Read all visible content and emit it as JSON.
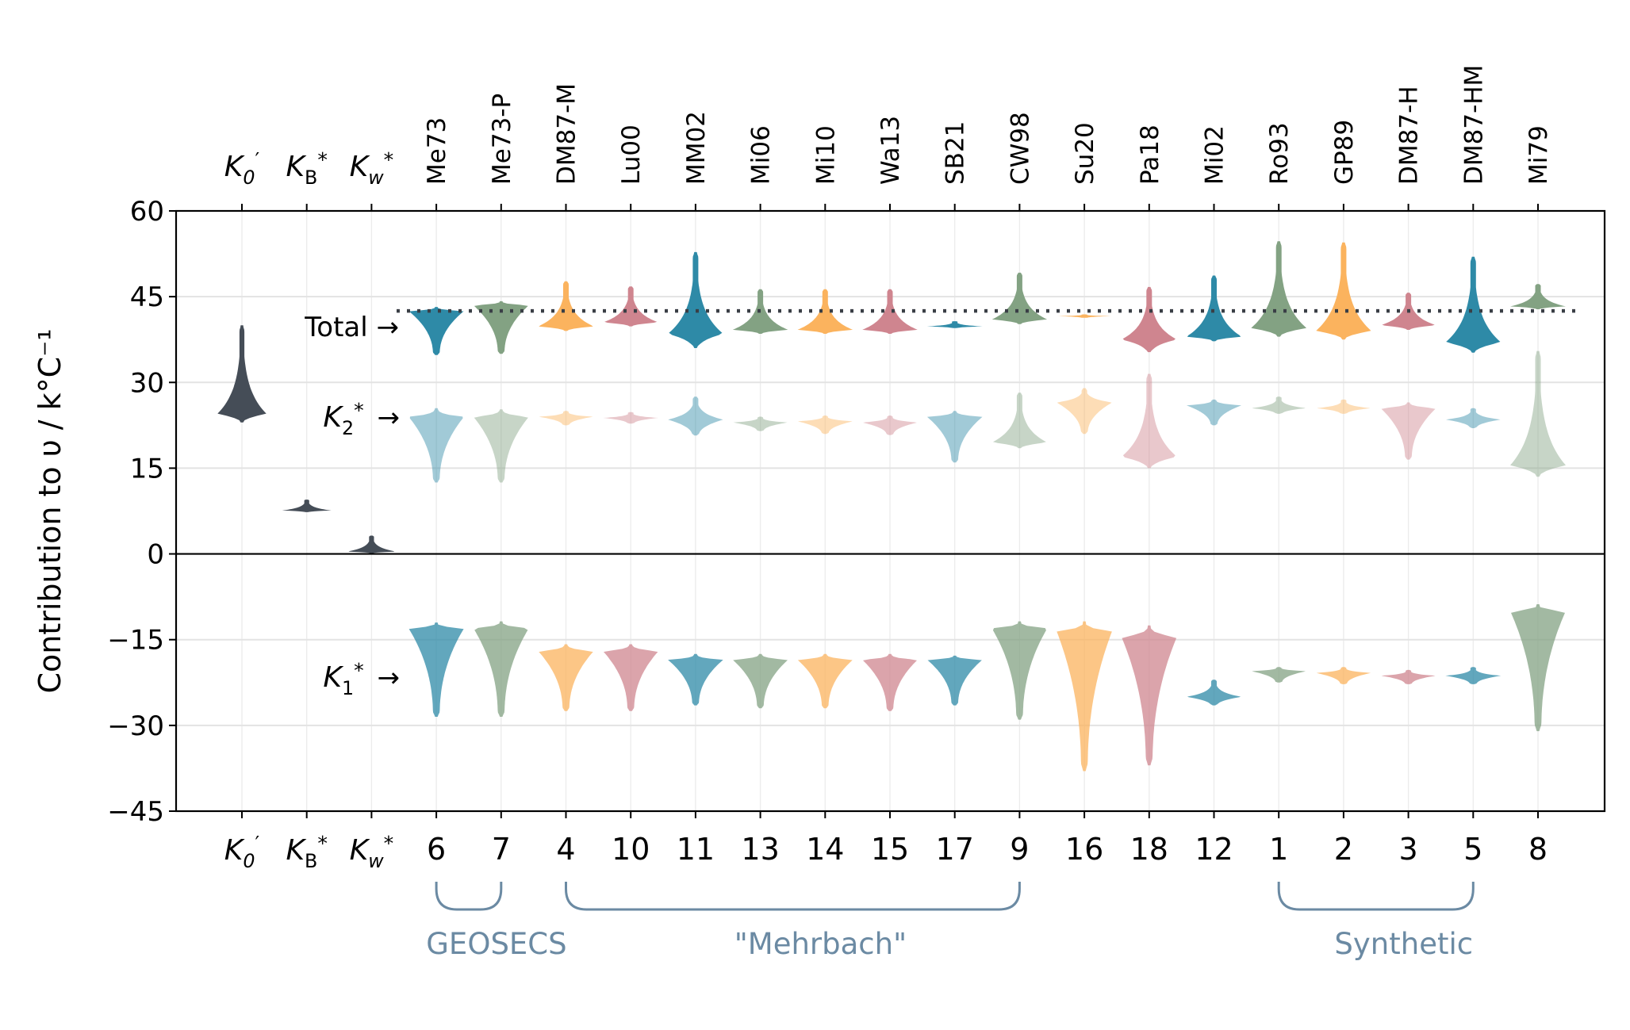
{
  "chart_data": {
    "type": "violin",
    "ylabel": "Contribution to υ / k°C⁻¹",
    "ylim": [
      -45,
      60
    ],
    "yticks": [
      60,
      45,
      30,
      15,
      0,
      -15,
      -30,
      -45
    ],
    "ytick_labels": [
      "60",
      "45",
      "30",
      "15",
      "0",
      "−15",
      "−30",
      "−45"
    ],
    "grid": true,
    "reference_line": {
      "label": "Total →",
      "y": 42.5,
      "style": "dotted"
    },
    "row_labels": {
      "total": "Total →",
      "k2": "→",
      "k1": "→"
    },
    "columns": [
      {
        "top_label": "K0′",
        "bottom_label": "K0′",
        "group": "constant",
        "color": "#454d57"
      },
      {
        "top_label": "KB*",
        "bottom_label": "KB*",
        "group": "constant",
        "color": "#454d57"
      },
      {
        "top_label": "Kw*",
        "bottom_label": "Kw*",
        "group": "constant",
        "color": "#454d57"
      },
      {
        "top_label": "Me73",
        "bottom_label": "6",
        "color": "#2e8aa7"
      },
      {
        "top_label": "Me73-P",
        "bottom_label": "7",
        "color": "#83a283"
      },
      {
        "top_label": "DM87-M",
        "bottom_label": "4",
        "color": "#fbb35e"
      },
      {
        "top_label": "Lu00",
        "bottom_label": "10",
        "color": "#cf858f"
      },
      {
        "top_label": "MM02",
        "bottom_label": "11",
        "color": "#2e8aa7"
      },
      {
        "top_label": "Mi06",
        "bottom_label": "13",
        "color": "#83a283"
      },
      {
        "top_label": "Mi10",
        "bottom_label": "14",
        "color": "#fbb35e"
      },
      {
        "top_label": "Wa13",
        "bottom_label": "15",
        "color": "#cf858f"
      },
      {
        "top_label": "SB21",
        "bottom_label": "17",
        "color": "#2e8aa7"
      },
      {
        "top_label": "CW98",
        "bottom_label": "9",
        "color": "#83a283"
      },
      {
        "top_label": "Su20",
        "bottom_label": "16",
        "color": "#fbb35e"
      },
      {
        "top_label": "Pa18",
        "bottom_label": "18",
        "color": "#cf858f"
      },
      {
        "top_label": "Mi02",
        "bottom_label": "12",
        "color": "#2e8aa7"
      },
      {
        "top_label": "Ro93",
        "bottom_label": "1",
        "color": "#83a283"
      },
      {
        "top_label": "GP89",
        "bottom_label": "2",
        "color": "#fbb35e"
      },
      {
        "top_label": "DM87-H",
        "bottom_label": "3",
        "color": "#cf858f"
      },
      {
        "top_label": "DM87-HM",
        "bottom_label": "5",
        "color": "#2e8aa7"
      },
      {
        "top_label": "Mi79",
        "bottom_label": "8",
        "color": "#83a283"
      }
    ],
    "series": [
      {
        "name": "Total",
        "violins": [
          {
            "col": 0,
            "y": [
              23,
              40
            ],
            "mode": 24.5
          },
          {
            "col": 1,
            "y": [
              7.3,
              9.5
            ],
            "mode": 7.6
          },
          {
            "col": 2,
            "y": [
              0.1,
              3.2
            ],
            "mode": 0.4
          },
          {
            "col": 3,
            "y": [
              34.8,
              43.2
            ],
            "mode": 42.5
          },
          {
            "col": 4,
            "y": [
              35,
              44.2
            ],
            "mode": 43.5
          },
          {
            "col": 5,
            "y": [
              39,
              47.7
            ],
            "mode": 39.8
          },
          {
            "col": 6,
            "y": [
              39.8,
              46.8
            ],
            "mode": 40.5
          },
          {
            "col": 7,
            "y": [
              36,
              52.8
            ],
            "mode": 38.5
          },
          {
            "col": 8,
            "y": [
              38.5,
              46.3
            ],
            "mode": 39.2
          },
          {
            "col": 9,
            "y": [
              38.5,
              46.3
            ],
            "mode": 39.2
          },
          {
            "col": 10,
            "y": [
              38.5,
              46.3
            ],
            "mode": 39.2
          },
          {
            "col": 11,
            "y": [
              39.5,
              40.7
            ],
            "mode": 39.8
          },
          {
            "col": 12,
            "y": [
              40.2,
              49.2
            ],
            "mode": 41.0
          },
          {
            "col": 13,
            "y": [
              41.3,
              41.9
            ],
            "mode": 41.6
          },
          {
            "col": 14,
            "y": [
              35.3,
              46.7
            ],
            "mode": 37.5
          },
          {
            "col": 15,
            "y": [
              37.2,
              48.7
            ],
            "mode": 38.0
          },
          {
            "col": 16,
            "y": [
              38,
              54.7
            ],
            "mode": 39.5
          },
          {
            "col": 17,
            "y": [
              37.5,
              54.5
            ],
            "mode": 39.0
          },
          {
            "col": 18,
            "y": [
              39.2,
              45.7
            ],
            "mode": 40.0
          },
          {
            "col": 19,
            "y": [
              35.2,
              52
            ],
            "mode": 37.0
          },
          {
            "col": 20,
            "y": [
              42.8,
              47.2
            ],
            "mode": 43.3
          }
        ]
      },
      {
        "name": "K2*",
        "violins": [
          {
            "col": 3,
            "y": [
              12.5,
              25.5
            ],
            "mode": 24.0
          },
          {
            "col": 4,
            "y": [
              12.5,
              25.3
            ],
            "mode": 24.0
          },
          {
            "col": 5,
            "y": [
              22.5,
              25
            ],
            "mode": 24.0
          },
          {
            "col": 6,
            "y": [
              22.8,
              24.8
            ],
            "mode": 23.8
          },
          {
            "col": 7,
            "y": [
              20.7,
              27.5
            ],
            "mode": 23.5
          },
          {
            "col": 8,
            "y": [
              21.5,
              24.0
            ],
            "mode": 23.0
          },
          {
            "col": 9,
            "y": [
              21.0,
              24.2
            ],
            "mode": 23.2
          },
          {
            "col": 10,
            "y": [
              20.8,
              24.2
            ],
            "mode": 23.0
          },
          {
            "col": 11,
            "y": [
              16.0,
              25.0
            ],
            "mode": 24.0
          },
          {
            "col": 12,
            "y": [
              18.5,
              28.2
            ],
            "mode": 19.5
          },
          {
            "col": 13,
            "y": [
              21.0,
              29.0
            ],
            "mode": 26.5
          },
          {
            "col": 14,
            "y": [
              15.0,
              31.5
            ],
            "mode": 17.0
          },
          {
            "col": 15,
            "y": [
              22.5,
              27.0
            ],
            "mode": 26.0
          },
          {
            "col": 16,
            "y": [
              24.5,
              27.5
            ],
            "mode": 25.5
          },
          {
            "col": 17,
            "y": [
              24.5,
              27.0
            ],
            "mode": 25.5
          },
          {
            "col": 18,
            "y": [
              16.5,
              26.5
            ],
            "mode": 25.5
          },
          {
            "col": 19,
            "y": [
              22.0,
              25.5
            ],
            "mode": 23.5
          },
          {
            "col": 20,
            "y": [
              13.5,
              35.5
            ],
            "mode": 15.5
          }
        ]
      },
      {
        "name": "K1*",
        "violins": [
          {
            "col": 3,
            "y": [
              -28.5,
              -12
            ],
            "mode": -13.0
          },
          {
            "col": 4,
            "y": [
              -28.5,
              -11.8
            ],
            "mode": -13.0
          },
          {
            "col": 5,
            "y": [
              -27.5,
              -15.8
            ],
            "mode": -17.0
          },
          {
            "col": 6,
            "y": [
              -27.5,
              -15.8
            ],
            "mode": -17.0
          },
          {
            "col": 7,
            "y": [
              -26.5,
              -17.5
            ],
            "mode": -18.5
          },
          {
            "col": 8,
            "y": [
              -27,
              -17.5
            ],
            "mode": -18.5
          },
          {
            "col": 9,
            "y": [
              -27,
              -17.5
            ],
            "mode": -18.5
          },
          {
            "col": 10,
            "y": [
              -27.5,
              -17.5
            ],
            "mode": -18.5
          },
          {
            "col": 11,
            "y": [
              -26.5,
              -17.8
            ],
            "mode": -18.5
          },
          {
            "col": 12,
            "y": [
              -29,
              -11.8
            ],
            "mode": -13.0
          },
          {
            "col": 13,
            "y": [
              -38,
              -11.8
            ],
            "mode": -13.5
          },
          {
            "col": 14,
            "y": [
              -37,
              -12.5
            ],
            "mode": -14.5
          },
          {
            "col": 15,
            "y": [
              -26.5,
              -22
            ],
            "mode": -25.0
          },
          {
            "col": 16,
            "y": [
              -22.5,
              -19.8
            ],
            "mode": -20.5
          },
          {
            "col": 17,
            "y": [
              -22.8,
              -19.8
            ],
            "mode": -20.8
          },
          {
            "col": 18,
            "y": [
              -22.8,
              -20.3
            ],
            "mode": -21.3
          },
          {
            "col": 19,
            "y": [
              -22.8,
              -19.8
            ],
            "mode": -21.3
          },
          {
            "col": 20,
            "y": [
              -31,
              -8.8
            ],
            "mode": -10.0
          }
        ]
      }
    ],
    "groups": [
      {
        "label": "GEOSECS",
        "from_col": 3,
        "to_col": 4
      },
      {
        "label": "\"Mehrbach\"",
        "from_col": 5,
        "to_col": 12
      },
      {
        "label": "Synthetic",
        "from_col": 16,
        "to_col": 19
      }
    ],
    "group_color": "#6b8aa3"
  }
}
